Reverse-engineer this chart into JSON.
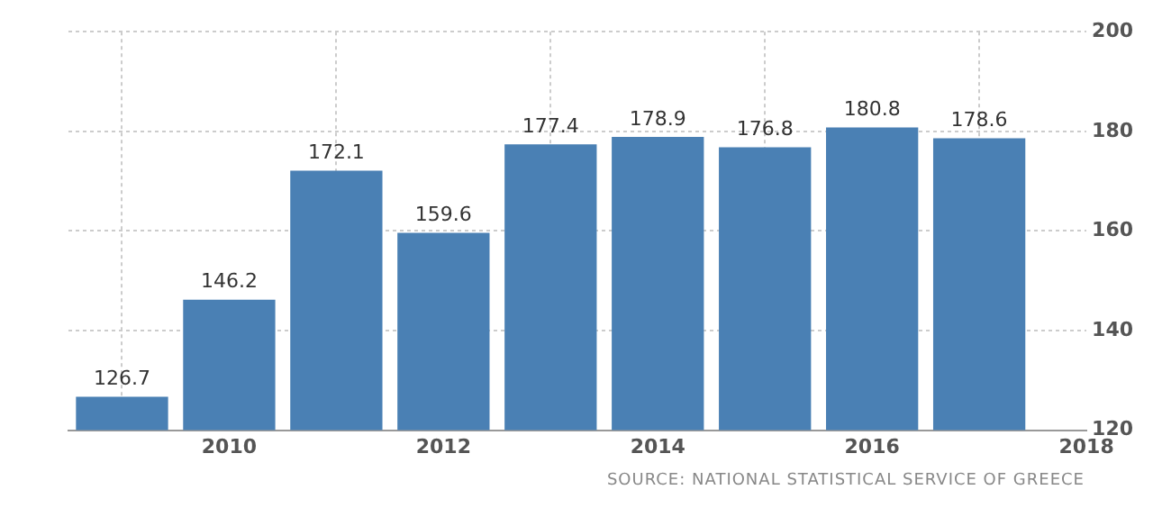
{
  "chart_data": {
    "type": "bar",
    "x": [
      2009,
      2010,
      2011,
      2012,
      2013,
      2014,
      2015,
      2016,
      2017
    ],
    "values": [
      126.7,
      146.2,
      172.1,
      159.6,
      177.4,
      178.9,
      176.8,
      180.8,
      178.6
    ],
    "color": "#4a80b4",
    "xlim": [
      2008.5,
      2018
    ],
    "xticks": [
      2010,
      2012,
      2014,
      2016,
      2018
    ],
    "ylim": [
      120,
      200
    ],
    "yticks": [
      120,
      140,
      160,
      180,
      200
    ],
    "grid": true,
    "data_labels": true,
    "legend": false,
    "annotations": [
      "SOURCE: NATIONAL STATISTICAL SERVICE OF GREECE"
    ]
  }
}
